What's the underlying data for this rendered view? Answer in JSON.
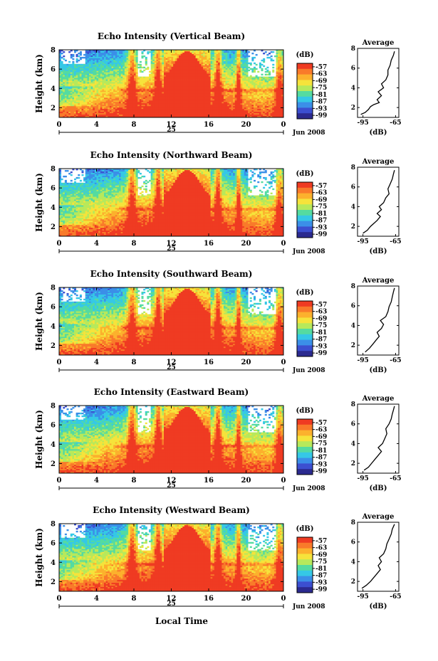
{
  "chart_data": {
    "type": "heatmap",
    "colorbar": {
      "unit_label": "(dB)",
      "ticks": [
        "-57",
        "-63",
        "-69",
        "-75",
        "-81",
        "-87",
        "-93",
        "-99"
      ],
      "vertical_ticks": [
        "-57",
        "-63",
        "-69",
        "-75",
        "-81",
        "-87",
        "-93",
        "-99"
      ],
      "colors": [
        "#ef3b22",
        "#f97a2a",
        "#fcb12d",
        "#f6e33b",
        "#b7e95b",
        "#55dba0",
        "#35c8e6",
        "#3b8fe8",
        "#3c4fd0",
        "#2b2a8f"
      ]
    },
    "x_axis": {
      "ticks": [
        "0",
        "4",
        "8",
        "12",
        "16",
        "20",
        "0"
      ],
      "tick_values": [
        0,
        4,
        8,
        12,
        16,
        20,
        24
      ],
      "date_label": "25",
      "month_label": "Jun 2008",
      "range": [
        0,
        24
      ]
    },
    "y_axis": {
      "label": "Height (km)",
      "ticks": [
        "2",
        "4",
        "6",
        "8"
      ],
      "range": [
        1,
        8
      ]
    },
    "profile": {
      "title": "Average",
      "xlabel": "(dB)",
      "xticks": [
        "-95",
        "-65"
      ],
      "yticks": [
        "2",
        "4",
        "6",
        "8"
      ]
    },
    "xlabel_bottom": "Local Time",
    "panels": [
      {
        "title": "Echo Intensity (Vertical Beam)",
        "xticks": [
          "0",
          "4",
          "8",
          "12",
          "16",
          "20",
          "0"
        ],
        "colorbar_ticks": [
          "-57",
          "-63",
          "-69",
          "-75",
          "-81",
          "-87",
          "-93",
          "-99"
        ],
        "profile_xticks": [
          "-95",
          "-65"
        ],
        "profile": [
          [
            -97,
            1.3
          ],
          [
            -93,
            1.5
          ],
          [
            -90,
            1.8
          ],
          [
            -88,
            2.1
          ],
          [
            -85,
            2.3
          ],
          [
            -80,
            2.5
          ],
          [
            -82,
            2.8
          ],
          [
            -78,
            3.2
          ],
          [
            -81,
            3.6
          ],
          [
            -76,
            4.0
          ],
          [
            -78,
            4.4
          ],
          [
            -74,
            4.8
          ],
          [
            -72,
            5.3
          ],
          [
            -72,
            5.8
          ],
          [
            -70,
            6.3
          ],
          [
            -69,
            6.8
          ],
          [
            -67,
            7.3
          ],
          [
            -66,
            7.7
          ]
        ]
      },
      {
        "title": "Echo Intensity (Northward Beam)",
        "xticks": [
          "0",
          "4",
          "8",
          "12",
          "16",
          "20",
          "0"
        ],
        "colorbar_ticks": [
          "-57",
          "-63",
          "-69",
          "-75",
          "-81",
          "-87",
          "-93",
          "-99"
        ],
        "profile_xticks": [
          "-95",
          "-65"
        ],
        "profile": [
          [
            -95,
            1.3
          ],
          [
            -91,
            1.6
          ],
          [
            -88,
            2.0
          ],
          [
            -85,
            2.3
          ],
          [
            -82,
            2.6
          ],
          [
            -79,
            3.0
          ],
          [
            -82,
            3.3
          ],
          [
            -78,
            3.7
          ],
          [
            -80,
            4.0
          ],
          [
            -76,
            4.4
          ],
          [
            -74,
            4.9
          ],
          [
            -71,
            5.3
          ],
          [
            -72,
            5.8
          ],
          [
            -70,
            6.3
          ],
          [
            -68,
            6.8
          ],
          [
            -67,
            7.3
          ],
          [
            -66,
            7.7
          ]
        ]
      },
      {
        "title": "Echo Intensity (Southward Beam)",
        "xticks": [
          "0",
          "4",
          "8",
          "12",
          "16",
          "20",
          "0"
        ],
        "colorbar_ticks": [
          "-57",
          "-63",
          "-69",
          "-75",
          "-81",
          "-87",
          "-93",
          "-99"
        ],
        "profile_xticks": [
          "-95",
          "-65"
        ],
        "profile": [
          [
            -93,
            1.3
          ],
          [
            -89,
            1.7
          ],
          [
            -86,
            2.1
          ],
          [
            -83,
            2.5
          ],
          [
            -80,
            2.9
          ],
          [
            -82,
            3.3
          ],
          [
            -78,
            3.7
          ],
          [
            -76,
            4.1
          ],
          [
            -79,
            4.5
          ],
          [
            -74,
            4.9
          ],
          [
            -72,
            5.4
          ],
          [
            -71,
            5.9
          ],
          [
            -69,
            6.4
          ],
          [
            -68,
            6.9
          ],
          [
            -67,
            7.4
          ],
          [
            -66,
            7.8
          ]
        ]
      },
      {
        "title": "Echo Intensity (Eastward Beam)",
        "xticks": [
          "0",
          "4",
          "8",
          "12",
          "16",
          "20",
          "0"
        ],
        "colorbar_ticks": [
          "-57",
          "-63",
          "-69",
          "-75",
          "-81",
          "-87",
          "-93",
          "-99"
        ],
        "profile_xticks": [
          "-95",
          "-65"
        ],
        "profile": [
          [
            -94,
            1.3
          ],
          [
            -90,
            1.6
          ],
          [
            -87,
            2.0
          ],
          [
            -84,
            2.4
          ],
          [
            -81,
            2.8
          ],
          [
            -78,
            3.2
          ],
          [
            -81,
            3.6
          ],
          [
            -77,
            4.0
          ],
          [
            -75,
            4.5
          ],
          [
            -73,
            5.0
          ],
          [
            -74,
            5.5
          ],
          [
            -71,
            6.0
          ],
          [
            -69,
            6.5
          ],
          [
            -68,
            7.0
          ],
          [
            -67,
            7.4
          ],
          [
            -66,
            7.8
          ]
        ]
      },
      {
        "title": "Echo Intensity (Westward Beam)",
        "xticks": [
          "0",
          "4",
          "8",
          "12",
          "16",
          "20",
          "0"
        ],
        "colorbar_ticks": [
          "-57",
          "-63",
          "-69",
          "-75",
          "-81",
          "-87",
          "-93",
          "-99"
        ],
        "profile_xticks": [
          "-95",
          "-65"
        ],
        "profile": [
          [
            -96,
            1.3
          ],
          [
            -92,
            1.6
          ],
          [
            -88,
            2.0
          ],
          [
            -85,
            2.4
          ],
          [
            -82,
            2.8
          ],
          [
            -79,
            3.2
          ],
          [
            -81,
            3.6
          ],
          [
            -78,
            4.0
          ],
          [
            -80,
            4.4
          ],
          [
            -76,
            4.8
          ],
          [
            -74,
            5.3
          ],
          [
            -73,
            5.8
          ],
          [
            -71,
            6.3
          ],
          [
            -69,
            6.8
          ],
          [
            -68,
            7.3
          ],
          [
            -66,
            7.8
          ]
        ]
      }
    ]
  }
}
